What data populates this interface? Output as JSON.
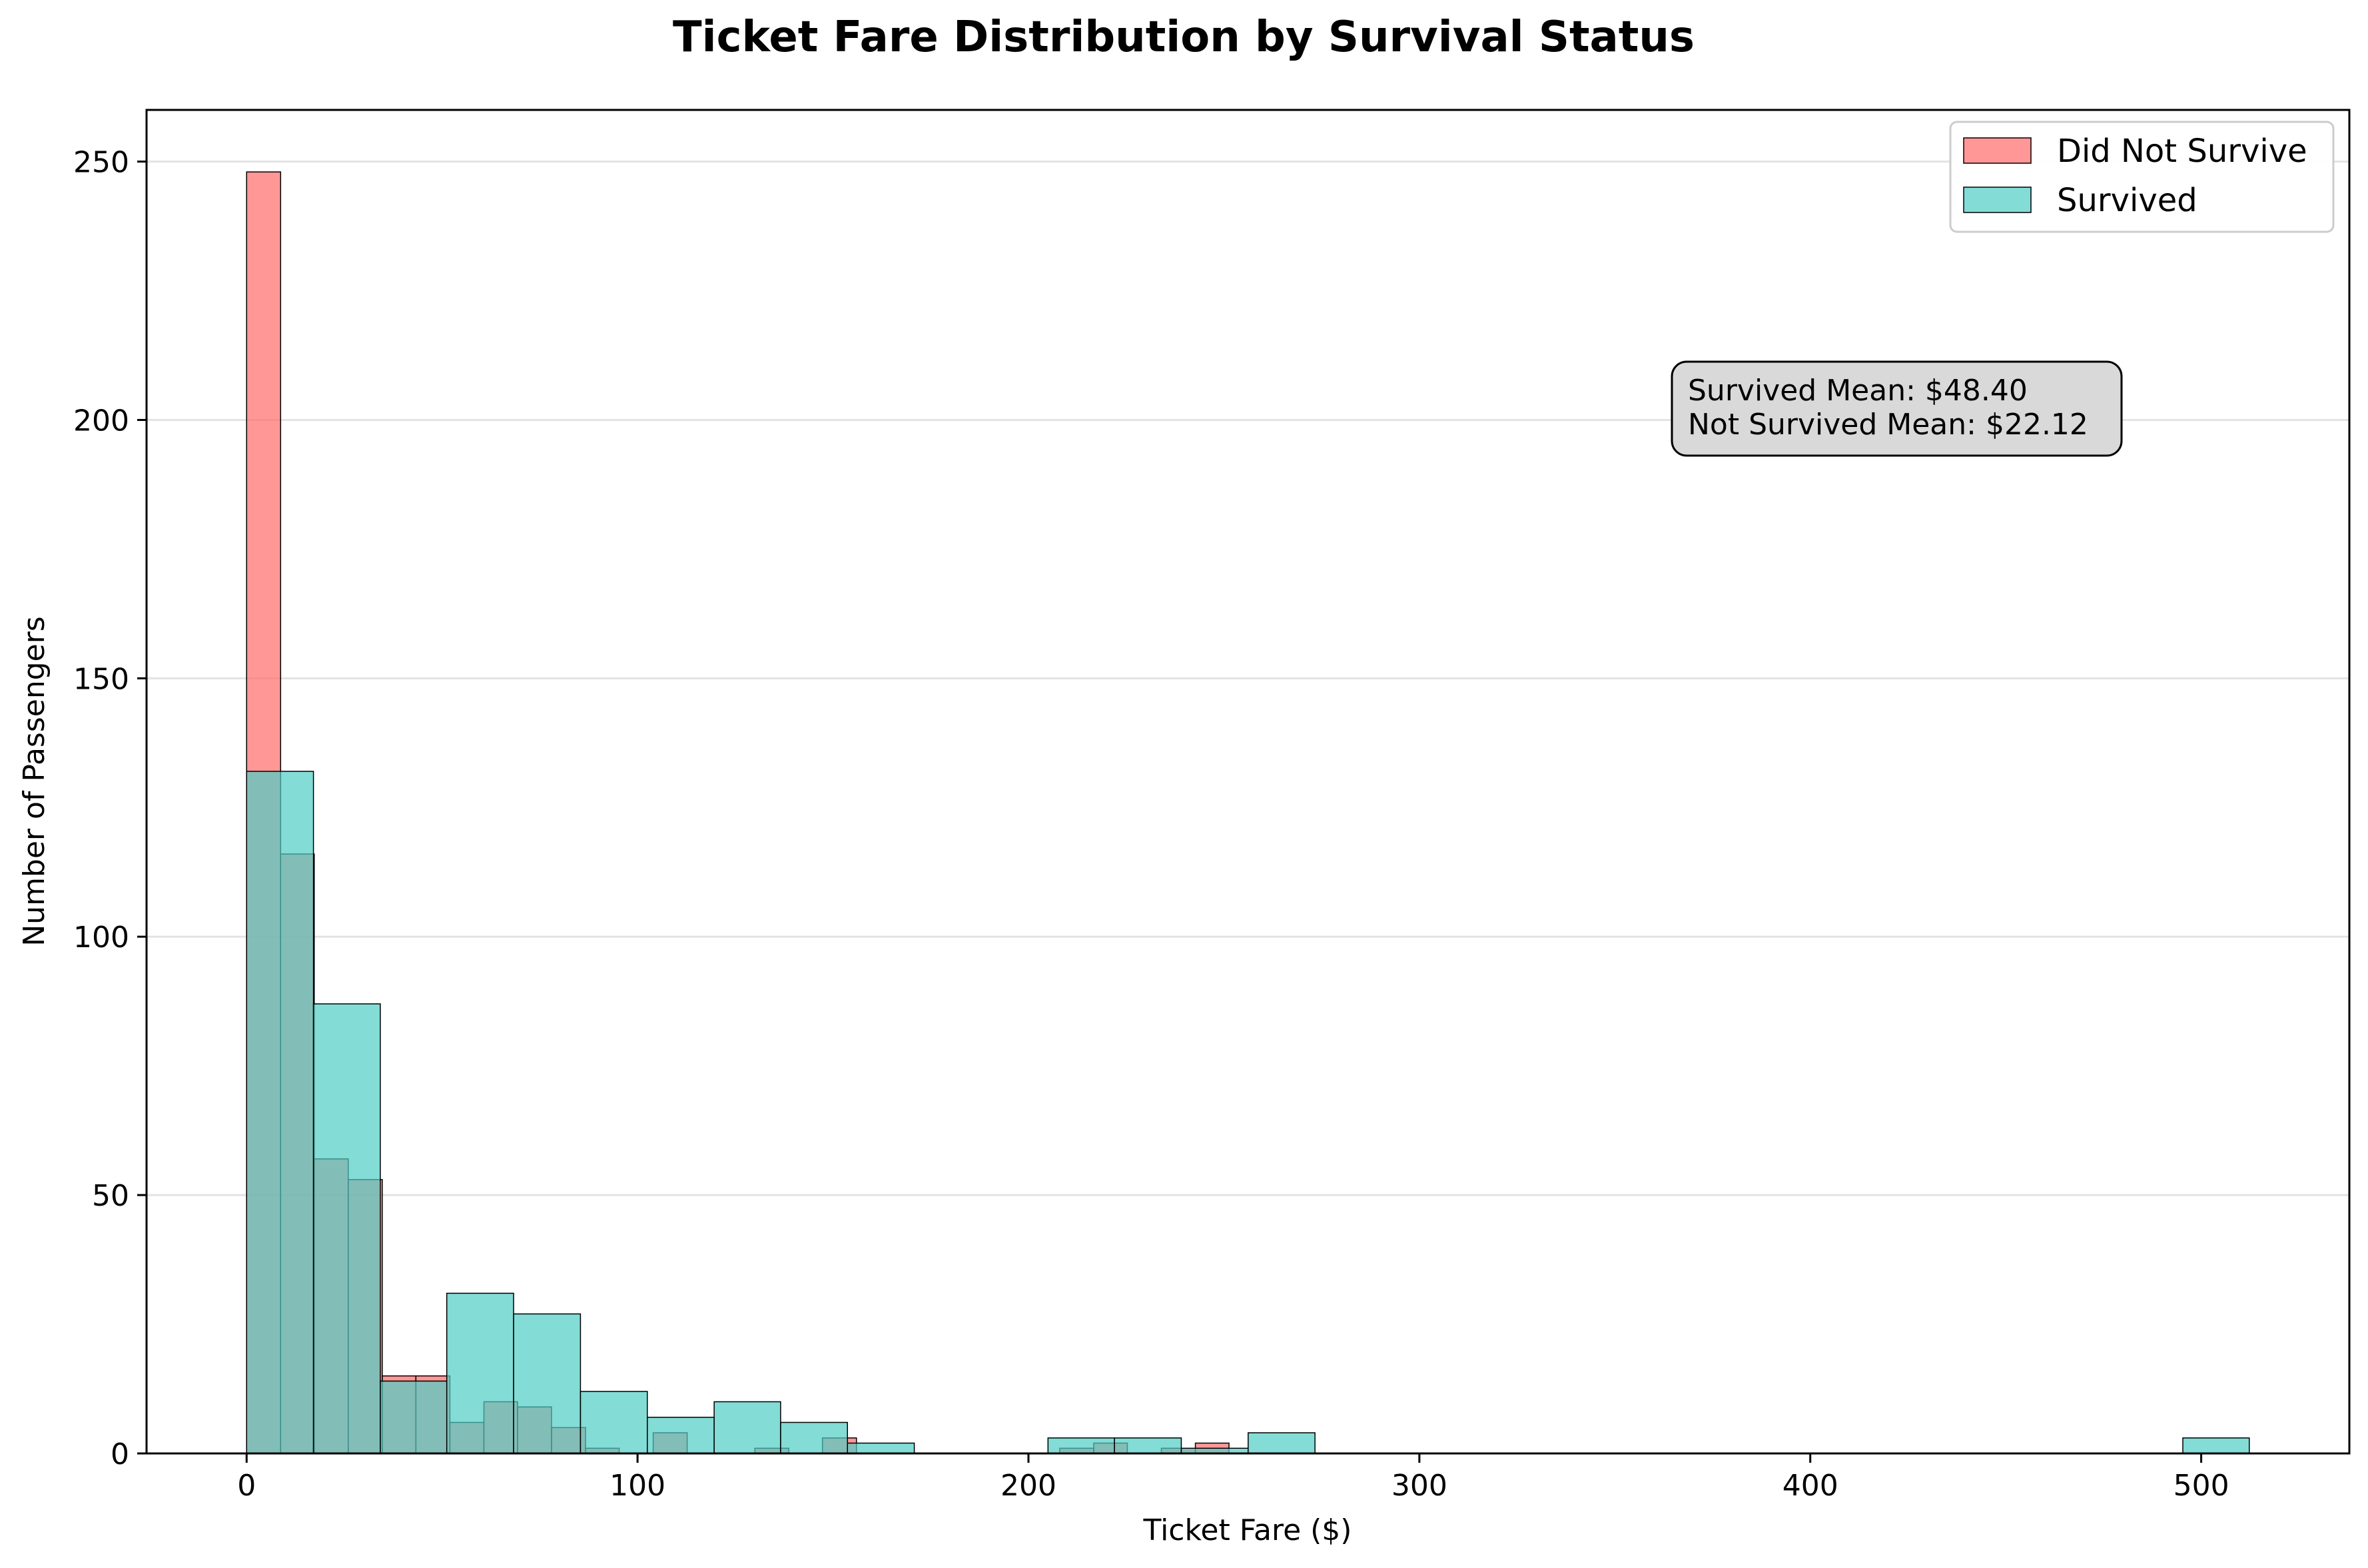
{
  "chart_data": {
    "type": "bar",
    "title": "Ticket Fare Distribution by Survival Status",
    "xlabel": "Ticket Fare ($)",
    "ylabel": "Number of Passengers",
    "xlim": [
      -25.6,
      537.9
    ],
    "ylim": [
      0,
      260
    ],
    "xticks": [
      0,
      100,
      200,
      300,
      400,
      500
    ],
    "yticks": [
      0,
      50,
      100,
      150,
      200,
      250
    ],
    "grid": "y",
    "legend_position": "top-right",
    "series": [
      {
        "name": "Did Not Survive",
        "color": "#ff6b6b",
        "bin_edges": [
          0,
          8.7,
          17.3,
          26.0,
          34.7,
          43.3,
          52.0,
          60.7,
          69.3,
          78.0,
          86.7,
          95.3,
          104.0,
          112.7,
          121.3,
          130.0,
          138.7,
          147.3,
          156.0,
          164.7,
          173.3,
          182.0,
          190.7,
          199.3,
          208.0,
          216.7,
          225.3,
          234.0,
          242.7,
          251.3,
          260.0
        ],
        "values": [
          248,
          116,
          57,
          53,
          15,
          15,
          6,
          10,
          9,
          5,
          1,
          0,
          4,
          0,
          0,
          1,
          0,
          3,
          0,
          0,
          0,
          0,
          0,
          0,
          1,
          2,
          0,
          1,
          2,
          0
        ]
      },
      {
        "name": "Survived",
        "color": "#4ecdc4",
        "bin_edges": [
          0,
          17.1,
          34.2,
          51.2,
          68.3,
          85.4,
          102.5,
          119.6,
          136.6,
          153.7,
          170.8,
          187.9,
          205.0,
          222.0,
          239.1,
          256.2,
          273.3,
          290.4,
          307.4,
          324.5,
          341.6,
          358.7,
          375.8,
          392.8,
          409.9,
          427.0,
          444.1,
          461.2,
          478.2,
          495.3,
          512.3
        ],
        "values": [
          132,
          87,
          14,
          31,
          27,
          12,
          7,
          10,
          6,
          2,
          0,
          0,
          3,
          3,
          1,
          4,
          0,
          0,
          0,
          0,
          0,
          0,
          0,
          0,
          0,
          0,
          0,
          0,
          0,
          3
        ]
      }
    ],
    "annotation": {
      "lines": [
        "Survived Mean: $48.40",
        "Not Survived Mean: $22.12"
      ]
    }
  }
}
